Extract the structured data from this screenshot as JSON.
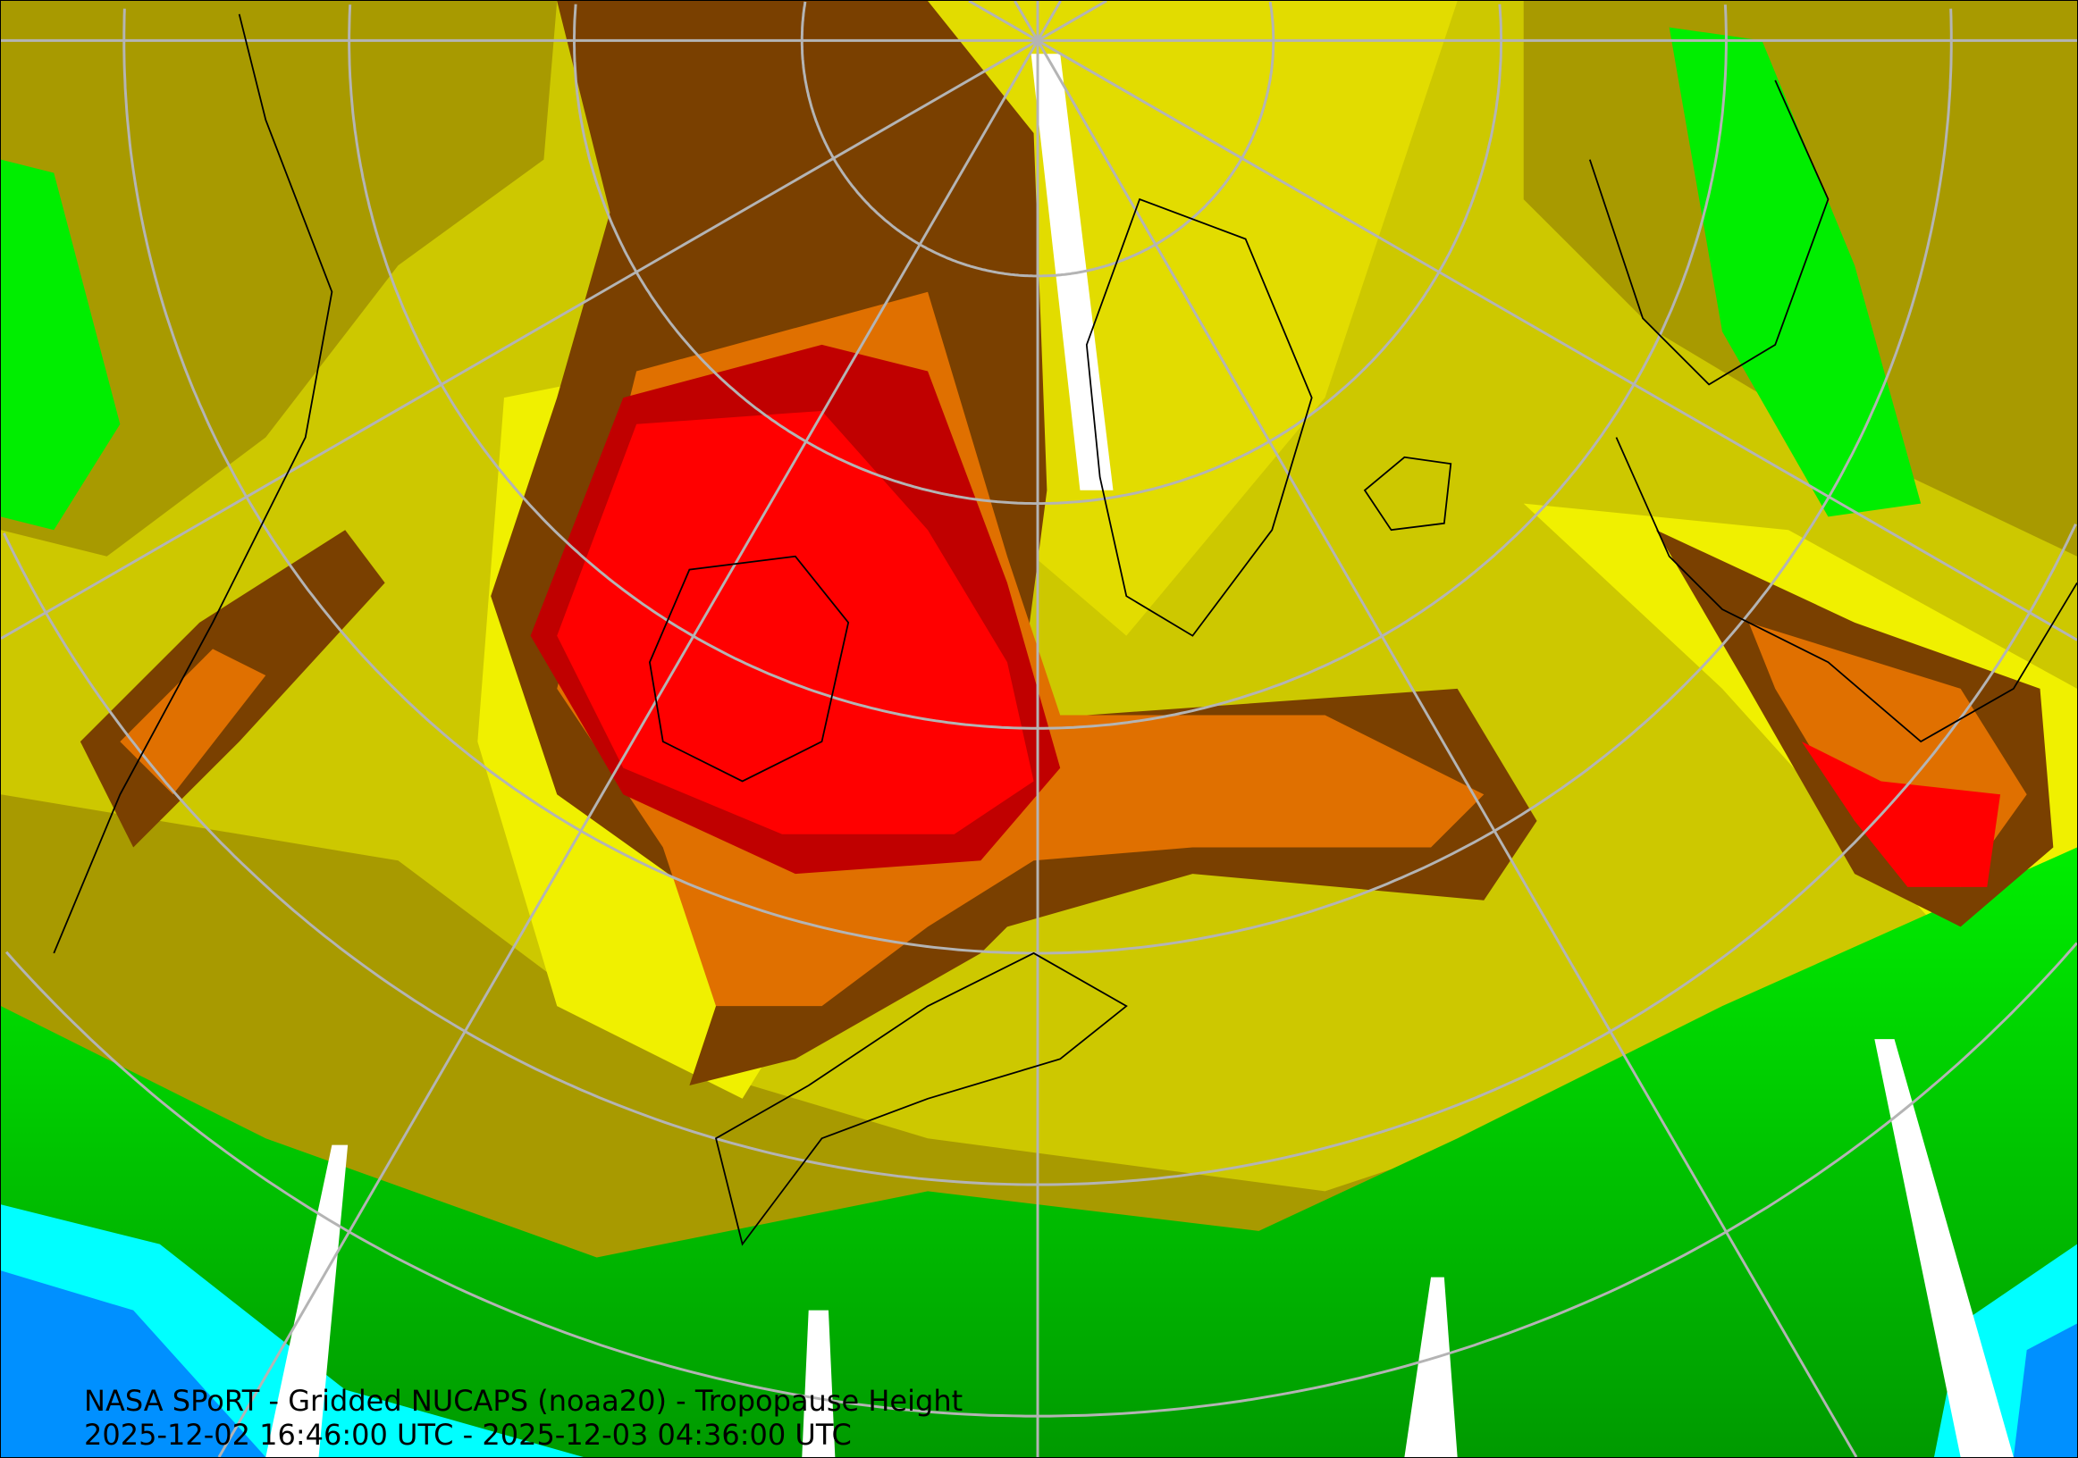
{
  "map": {
    "title": "NASA SPoRT - Gridded NUCAPS (noaa20) - Tropopause Height",
    "time_range": "2025-12-02 16:46:00 UTC - 2025-12-03 04:36:00 UTC",
    "projection": "north-polar-stereographic",
    "graticule": true,
    "colors": {
      "yellow": "#f0f000",
      "light_olive": "#cdc800",
      "olive": "#a89a00",
      "brown": "#7a4000",
      "orange": "#e07000",
      "dark_red": "#c00000",
      "red": "#ff0000",
      "green": "#00ee00",
      "dark_green": "#009a00",
      "cyan": "#00ffff",
      "blue": "#0090ff",
      "no_data": "#ffffff",
      "graticule": "#b4b4b4",
      "coastline": "#000000"
    }
  }
}
